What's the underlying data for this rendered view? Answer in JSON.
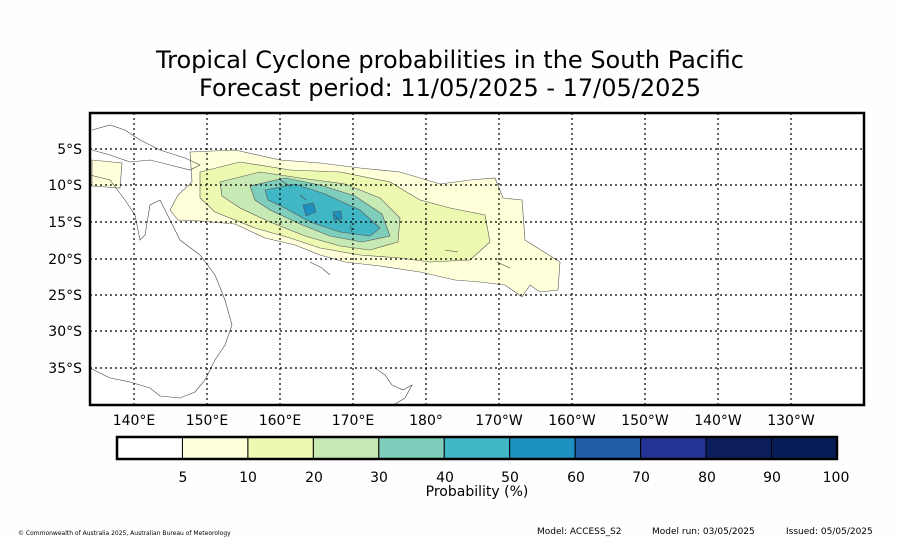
{
  "title_line1": "Tropical Cyclone probabilities in the South Pacific",
  "title_line2": "Forecast period: 11/05/2025 - 17/05/2025",
  "lat_labels": [
    "5°S",
    "10°S",
    "15°S",
    "20°S",
    "25°S",
    "30°S",
    "35°S"
  ],
  "lon_labels": [
    "140°E",
    "150°E",
    "160°E",
    "170°E",
    "180°",
    "170°W",
    "160°W",
    "150°W",
    "140°W",
    "130°W"
  ],
  "colorbar": {
    "label": "Probability (%)",
    "tick_labels": [
      "5",
      "10",
      "20",
      "30",
      "40",
      "50",
      "60",
      "70",
      "80",
      "90",
      "100"
    ],
    "colors": [
      "#ffffff",
      "#ffffd9",
      "#edf8b1",
      "#c7e9b4",
      "#7fcdbb",
      "#41b6c4",
      "#1d91c0",
      "#225ea8",
      "#253494",
      "#0c1e5c",
      "#081d58"
    ]
  },
  "footer": {
    "copyright": "© Commonwealth of Australia 2025, Australian Bureau of Meteorology",
    "model": "Model: ACCESS_S2",
    "model_run": "Model run: 03/05/2025",
    "issued": "Issued: 05/05/2025"
  }
}
